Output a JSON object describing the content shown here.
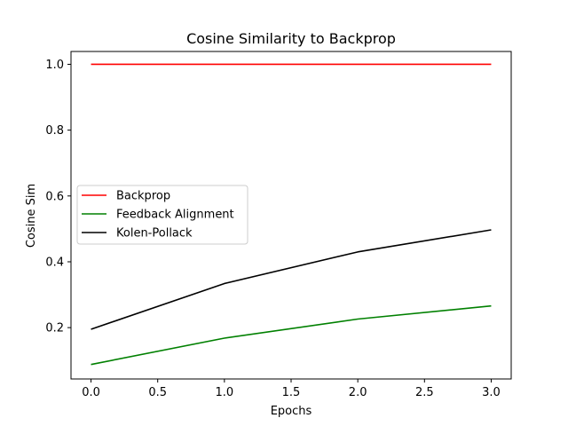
{
  "chart_data": {
    "type": "line",
    "title": "Cosine Similarity to Backprop",
    "xlabel": "Epochs",
    "ylabel": "Cosine Sim",
    "x": [
      0,
      1,
      2,
      3
    ],
    "xlim": [
      -0.15,
      3.15
    ],
    "ylim": [
      0.044,
      1.039
    ],
    "xticks": [
      0.0,
      0.5,
      1.0,
      1.5,
      2.0,
      2.5,
      3.0
    ],
    "xtick_labels": [
      "0.0",
      "0.5",
      "1.0",
      "1.5",
      "2.0",
      "2.5",
      "3.0"
    ],
    "yticks": [
      0.2,
      0.4,
      0.6,
      0.8,
      1.0
    ],
    "ytick_labels": [
      "0.2",
      "0.4",
      "0.6",
      "0.8",
      "1.0"
    ],
    "grid": false,
    "legend_position": "center-left",
    "series": [
      {
        "name": "Backprop",
        "color": "#ff0000",
        "values": [
          1.0,
          1.0,
          1.0,
          1.0
        ]
      },
      {
        "name": "Feedback Alignment",
        "color": "#008000",
        "values": [
          0.088,
          0.168,
          0.226,
          0.266
        ]
      },
      {
        "name": "Kolen-Pollack",
        "color": "#000000",
        "values": [
          0.195,
          0.334,
          0.43,
          0.497
        ]
      }
    ]
  }
}
